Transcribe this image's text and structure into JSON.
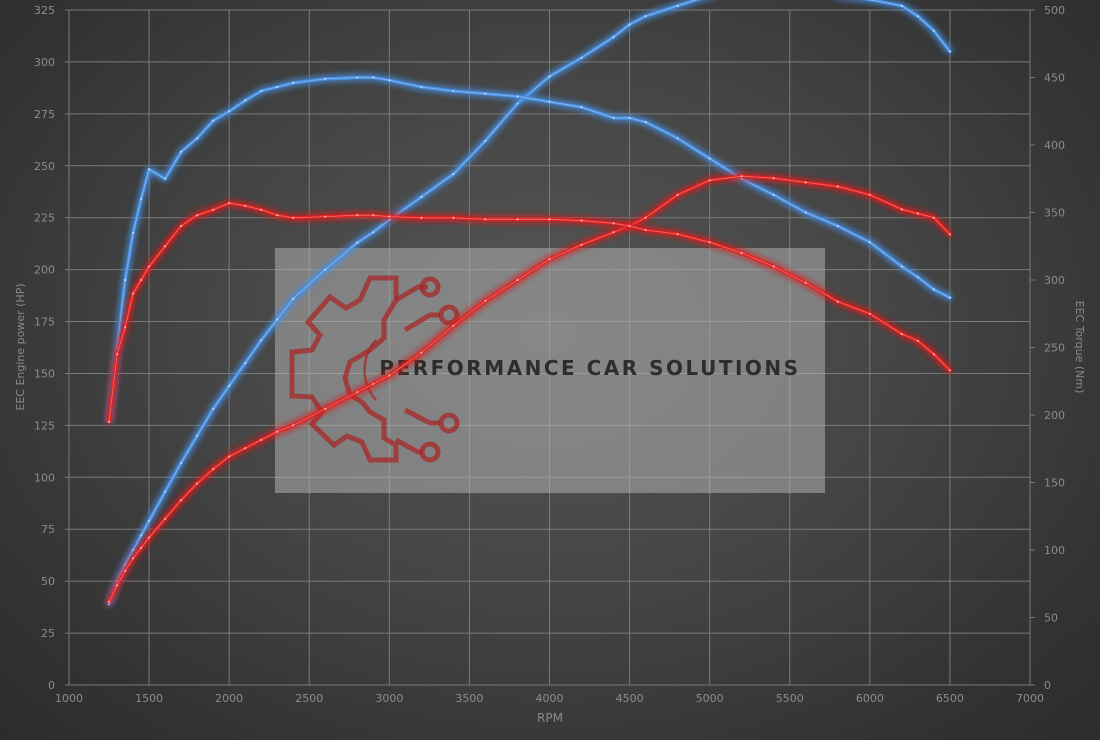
{
  "chart_data": {
    "type": "line",
    "title": "",
    "xlabel": "RPM",
    "ylabel_left": "EEC Engine power (HP)",
    "ylabel_right": "EEC Torque (Nm)",
    "xlim": [
      1000,
      7000
    ],
    "ylim_left": [
      0,
      325
    ],
    "ylim_right": [
      0,
      500
    ],
    "x_ticks": [
      1000,
      1500,
      2000,
      2500,
      3000,
      3500,
      4000,
      4500,
      5000,
      5500,
      6000,
      6500,
      7000
    ],
    "y_ticks_left": [
      0,
      25,
      50,
      75,
      100,
      125,
      150,
      175,
      200,
      225,
      250,
      275,
      300,
      325
    ],
    "y_ticks_right": [
      0,
      50,
      100,
      150,
      200,
      250,
      300,
      350,
      400,
      450,
      500
    ],
    "grid": true,
    "legend": "none",
    "series": [
      {
        "axis": "left",
        "color": "#4a90e2",
        "x": [
          1250,
          1300,
          1350,
          1400,
          1450,
          1500,
          1600,
          1700,
          1800,
          1900,
          2000,
          2100,
          2200,
          2300,
          2400,
          2600,
          2800,
          2900,
          3000,
          3200,
          3400,
          3600,
          3800,
          4000,
          4200,
          4400,
          4500,
          4600,
          4800,
          5000,
          5200,
          5400,
          5600,
          5800,
          6000,
          6200,
          6300,
          6400,
          6500
        ],
        "values": [
          39,
          50,
          58,
          65,
          72,
          79,
          93,
          107,
          120,
          133,
          144,
          155,
          166,
          176,
          186,
          200,
          213,
          218,
          224,
          235,
          246,
          262,
          280,
          293,
          302,
          312,
          318,
          322,
          327,
          332,
          337,
          338,
          336,
          332,
          330,
          327,
          322,
          315,
          305
        ]
      },
      {
        "axis": "right",
        "color": "#4a90e2",
        "x": [
          1250,
          1300,
          1350,
          1400,
          1450,
          1500,
          1600,
          1700,
          1800,
          1900,
          2000,
          2100,
          2200,
          2300,
          2400,
          2600,
          2800,
          2900,
          3000,
          3200,
          3400,
          3600,
          3800,
          4000,
          4200,
          4400,
          4500,
          4600,
          4800,
          5000,
          5200,
          5400,
          5600,
          5800,
          6000,
          6200,
          6300,
          6400,
          6500
        ],
        "values": [
          195,
          250,
          300,
          335,
          360,
          382,
          375,
          395,
          405,
          418,
          425,
          433,
          440,
          443,
          446,
          449,
          450,
          450,
          448,
          443,
          440,
          438,
          436,
          432,
          428,
          420,
          420,
          417,
          405,
          390,
          375,
          363,
          350,
          340,
          328,
          310,
          302,
          293,
          287
        ]
      },
      {
        "axis": "left",
        "color": "#e02020",
        "x": [
          1250,
          1300,
          1350,
          1400,
          1450,
          1500,
          1600,
          1700,
          1800,
          1900,
          2000,
          2100,
          2200,
          2300,
          2400,
          2600,
          2800,
          2900,
          3000,
          3200,
          3400,
          3600,
          3800,
          4000,
          4200,
          4400,
          4500,
          4600,
          4800,
          5000,
          5200,
          5400,
          5600,
          5800,
          6000,
          6200,
          6300,
          6400,
          6500
        ],
        "values": [
          40,
          48,
          55,
          61,
          66,
          71,
          80,
          89,
          97,
          104,
          110,
          114,
          118,
          122,
          125,
          133,
          141,
          145,
          149,
          160,
          173,
          185,
          195,
          205,
          212,
          218,
          221,
          225,
          236,
          243,
          245,
          244,
          242,
          240,
          236,
          229,
          227,
          225,
          217
        ]
      },
      {
        "axis": "right",
        "color": "#e02020",
        "x": [
          1250,
          1300,
          1350,
          1400,
          1450,
          1500,
          1600,
          1700,
          1800,
          1900,
          2000,
          2100,
          2200,
          2300,
          2400,
          2600,
          2800,
          2900,
          3000,
          3200,
          3400,
          3600,
          3800,
          4000,
          4200,
          4400,
          4500,
          4600,
          4800,
          5000,
          5200,
          5400,
          5600,
          5800,
          6000,
          6200,
          6300,
          6400,
          6500
        ],
        "values": [
          195,
          245,
          265,
          290,
          300,
          310,
          325,
          340,
          348,
          352,
          357,
          355,
          352,
          348,
          346,
          347,
          348,
          348,
          347,
          346,
          346,
          345,
          345,
          345,
          344,
          342,
          340,
          337,
          334,
          328,
          320,
          310,
          298,
          284,
          275,
          260,
          255,
          245,
          233
        ]
      }
    ]
  },
  "watermark": {
    "text": "PERFORMANCE CAR SOLUTIONS"
  }
}
